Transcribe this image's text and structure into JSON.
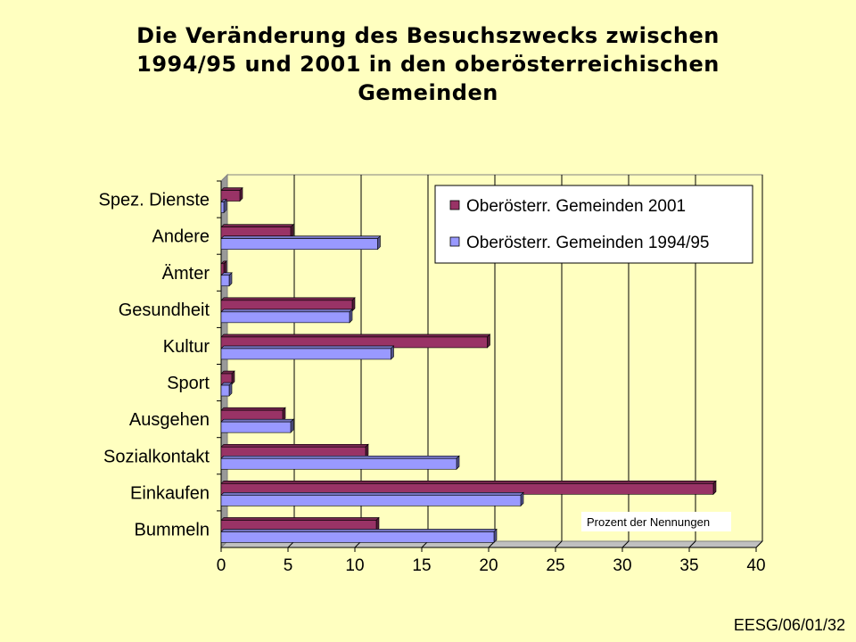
{
  "title": {
    "line1": "Die Veränderung des Besuchszwecks zwischen",
    "line2": "1994/95 und 2001 in den oberösterreichischen",
    "line3": "Gemeinden"
  },
  "footer": "EESG/06/01/32",
  "chart_data": {
    "type": "bar",
    "orientation": "horizontal",
    "categories": [
      "Bummeln",
      "Einkaufen",
      "Sozialkontakt",
      "Ausgehen",
      "Sport",
      "Kultur",
      "Gesundheit",
      "Ämter",
      "Andere",
      "Spez. Dienste"
    ],
    "series": [
      {
        "name": "Oberösterr. Gemeinden 2001",
        "color": "#993366",
        "values": [
          11.6,
          36.8,
          10.8,
          4.6,
          0.8,
          19.9,
          9.8,
          0.2,
          5.2,
          1.4
        ]
      },
      {
        "name": "Oberösterr. Gemeinden 1994/95",
        "color": "#9999FF",
        "values": [
          20.4,
          22.4,
          17.6,
          5.2,
          0.6,
          12.7,
          9.6,
          0.6,
          11.7,
          0.2
        ]
      }
    ],
    "xlim": [
      0,
      40
    ],
    "xticks": [
      0,
      5,
      10,
      15,
      20,
      25,
      30,
      35,
      40
    ],
    "note": "Prozent der Nennungen",
    "legend_position": "top-right",
    "grid": true,
    "plot_background": "#FFFFC0"
  }
}
